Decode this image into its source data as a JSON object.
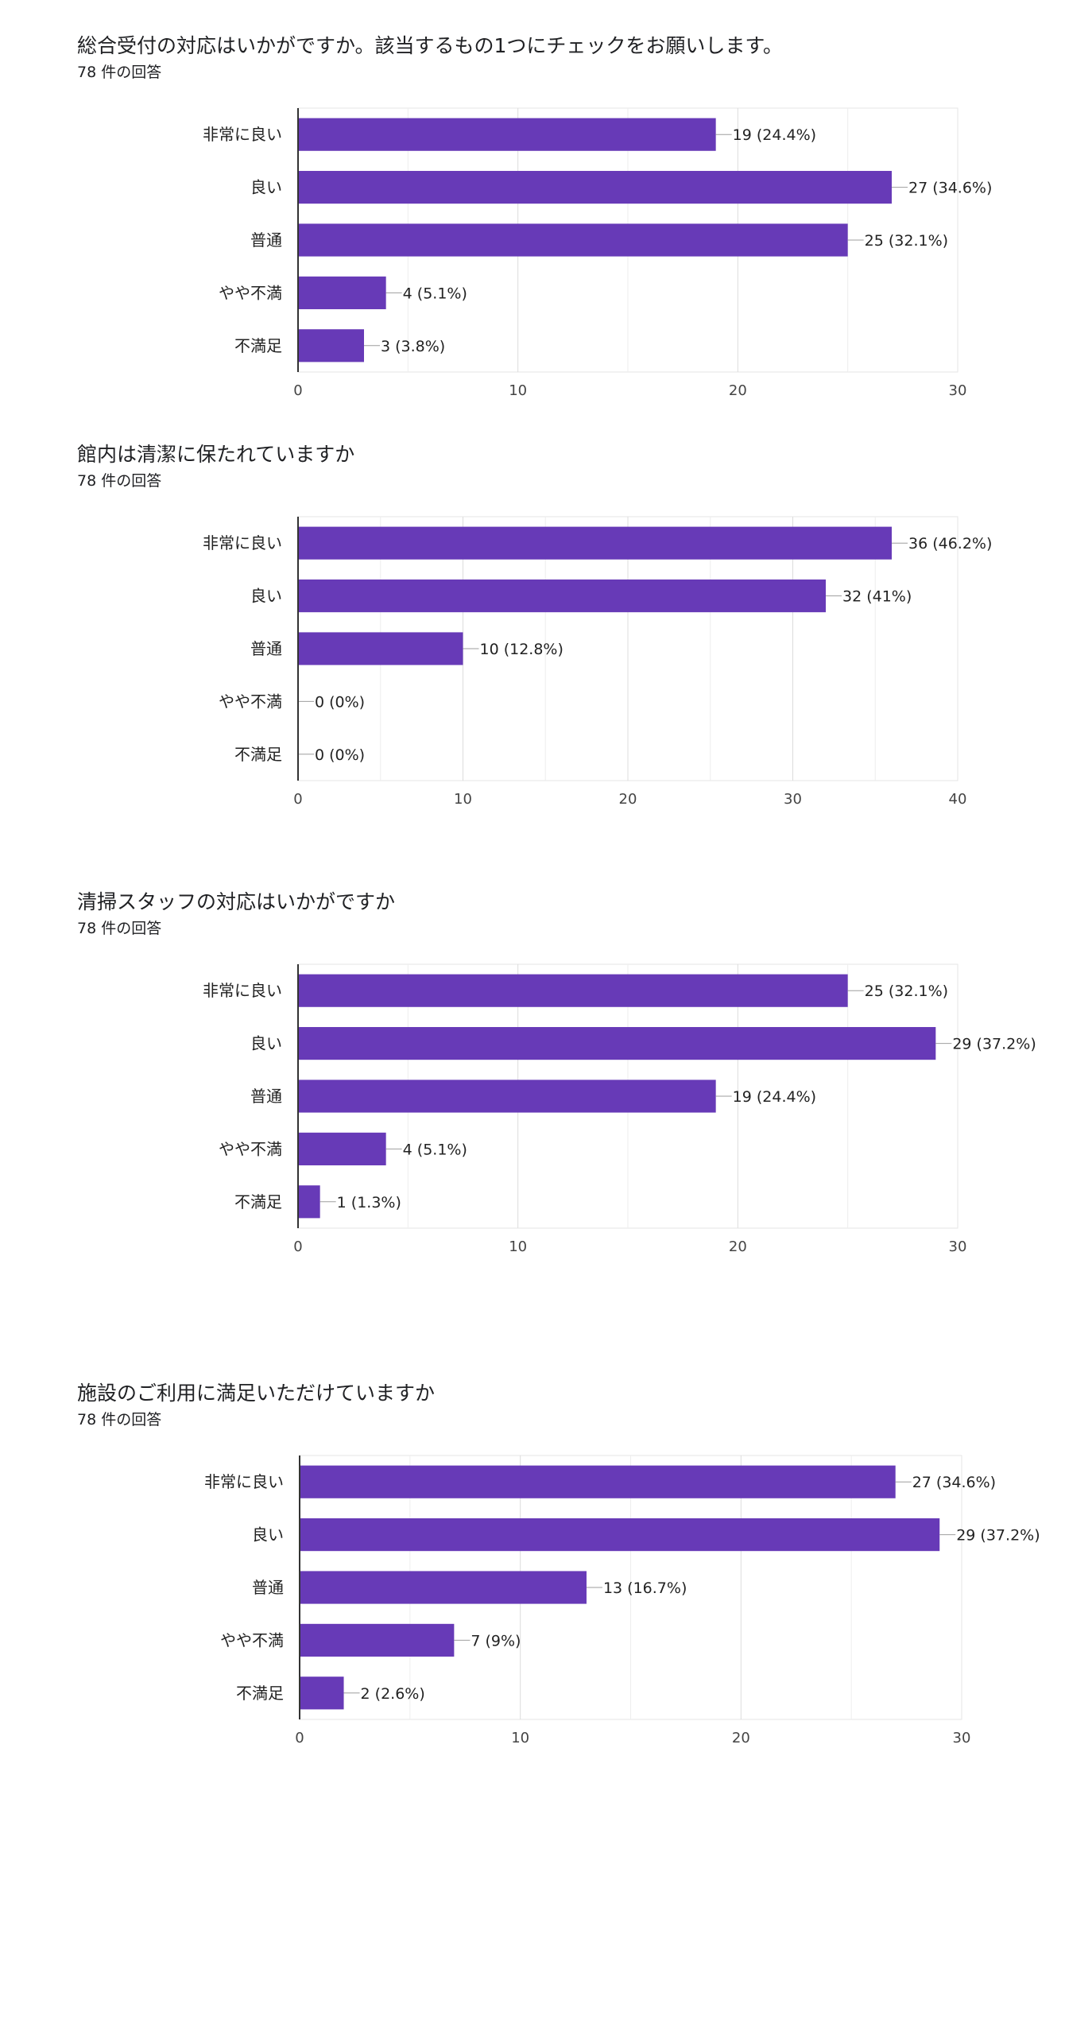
{
  "accent_color": "#673AB7",
  "chart_data": [
    {
      "type": "bar",
      "orientation": "horizontal",
      "title": "総合受付の対応はいかがですか。該当するもの1つにチェックをお願いします。",
      "subtitle": "78 件の回答",
      "categories": [
        "非常に良い",
        "良い",
        "普通",
        "やや不満",
        "不満足"
      ],
      "values": [
        19,
        27,
        25,
        4,
        3
      ],
      "value_labels": [
        "19 (24.4%)",
        "27 (34.6%)",
        "25 (32.1%)",
        "4 (5.1%)",
        "3 (3.8%)"
      ],
      "xlim": [
        0,
        30
      ],
      "ticks": [
        "0",
        "10",
        "20",
        "30"
      ],
      "grid": true
    },
    {
      "type": "bar",
      "orientation": "horizontal",
      "title": "館内は清潔に保たれていますか",
      "subtitle": "78 件の回答",
      "categories": [
        "非常に良い",
        "良い",
        "普通",
        "やや不満",
        "不満足"
      ],
      "values": [
        36,
        32,
        10,
        0,
        0
      ],
      "value_labels": [
        "36 (46.2%)",
        "32 (41%)",
        "10 (12.8%)",
        "0 (0%)",
        "0 (0%)"
      ],
      "xlim": [
        0,
        40
      ],
      "ticks": [
        "0",
        "10",
        "20",
        "30",
        "40"
      ],
      "grid": true
    },
    {
      "type": "bar",
      "orientation": "horizontal",
      "title": "清掃スタッフの対応はいかがですか",
      "subtitle": "78 件の回答",
      "categories": [
        "非常に良い",
        "良い",
        "普通",
        "やや不満",
        "不満足"
      ],
      "values": [
        25,
        29,
        19,
        4,
        1
      ],
      "value_labels": [
        "25 (32.1%)",
        "29 (37.2%)",
        "19 (24.4%)",
        "4 (5.1%)",
        "1 (1.3%)"
      ],
      "xlim": [
        0,
        30
      ],
      "ticks": [
        "0",
        "10",
        "20",
        "30"
      ],
      "grid": true
    },
    {
      "type": "bar",
      "orientation": "horizontal",
      "title": "施設のご利用に満足いただけていますか",
      "subtitle": "78 件の回答",
      "categories": [
        "非常に良い",
        "良い",
        "普通",
        "やや不満",
        "不満足"
      ],
      "values": [
        27,
        29,
        13,
        7,
        2
      ],
      "value_labels": [
        "27 (34.6%)",
        "29 (37.2%)",
        "13 (16.7%)",
        "7 (9%)",
        "2 (2.6%)"
      ],
      "xlim": [
        0,
        30
      ],
      "ticks": [
        "0",
        "10",
        "20",
        "30"
      ],
      "grid": true
    }
  ]
}
